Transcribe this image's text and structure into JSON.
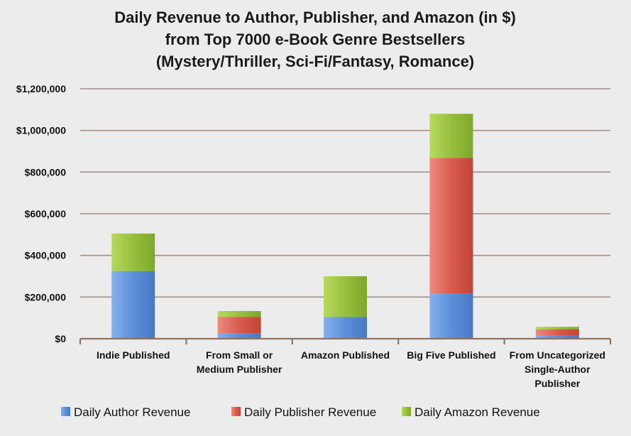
{
  "chart_data": {
    "type": "bar",
    "stacked": true,
    "title": [
      "Daily Revenue to Author, Publisher, and Amazon (in $)",
      "from Top 7000 e-Book Genre Bestsellers",
      "(Mystery/Thriller, Sci-Fi/Fantasy, Romance)"
    ],
    "categories": [
      [
        "Indie Published"
      ],
      [
        "From Small or",
        "Medium Publisher"
      ],
      [
        "Amazon Published"
      ],
      [
        "Big Five Published"
      ],
      [
        "From Uncategorized",
        "Single-Author",
        "Publisher"
      ]
    ],
    "series": [
      {
        "name": "Daily Author Revenue",
        "color": "#5b8fd9",
        "values": [
          325000,
          25000,
          105000,
          218000,
          15000
        ]
      },
      {
        "name": "Daily Publisher Revenue",
        "color": "#d95b4e",
        "values": [
          0,
          80000,
          0,
          650000,
          30000
        ]
      },
      {
        "name": "Daily Amazon Revenue",
        "color": "#98bf3c",
        "values": [
          180000,
          28000,
          195000,
          212000,
          12000
        ]
      }
    ],
    "ylim": [
      0,
      1200000
    ],
    "yticks": [
      0,
      200000,
      400000,
      600000,
      800000,
      1000000,
      1200000
    ],
    "ytick_labels": [
      "$0",
      "$200,000",
      "$400,000",
      "$600,000",
      "$800,000",
      "$1,000,000",
      "$1,200,000"
    ],
    "grid": true,
    "legend_position": "bottom"
  }
}
